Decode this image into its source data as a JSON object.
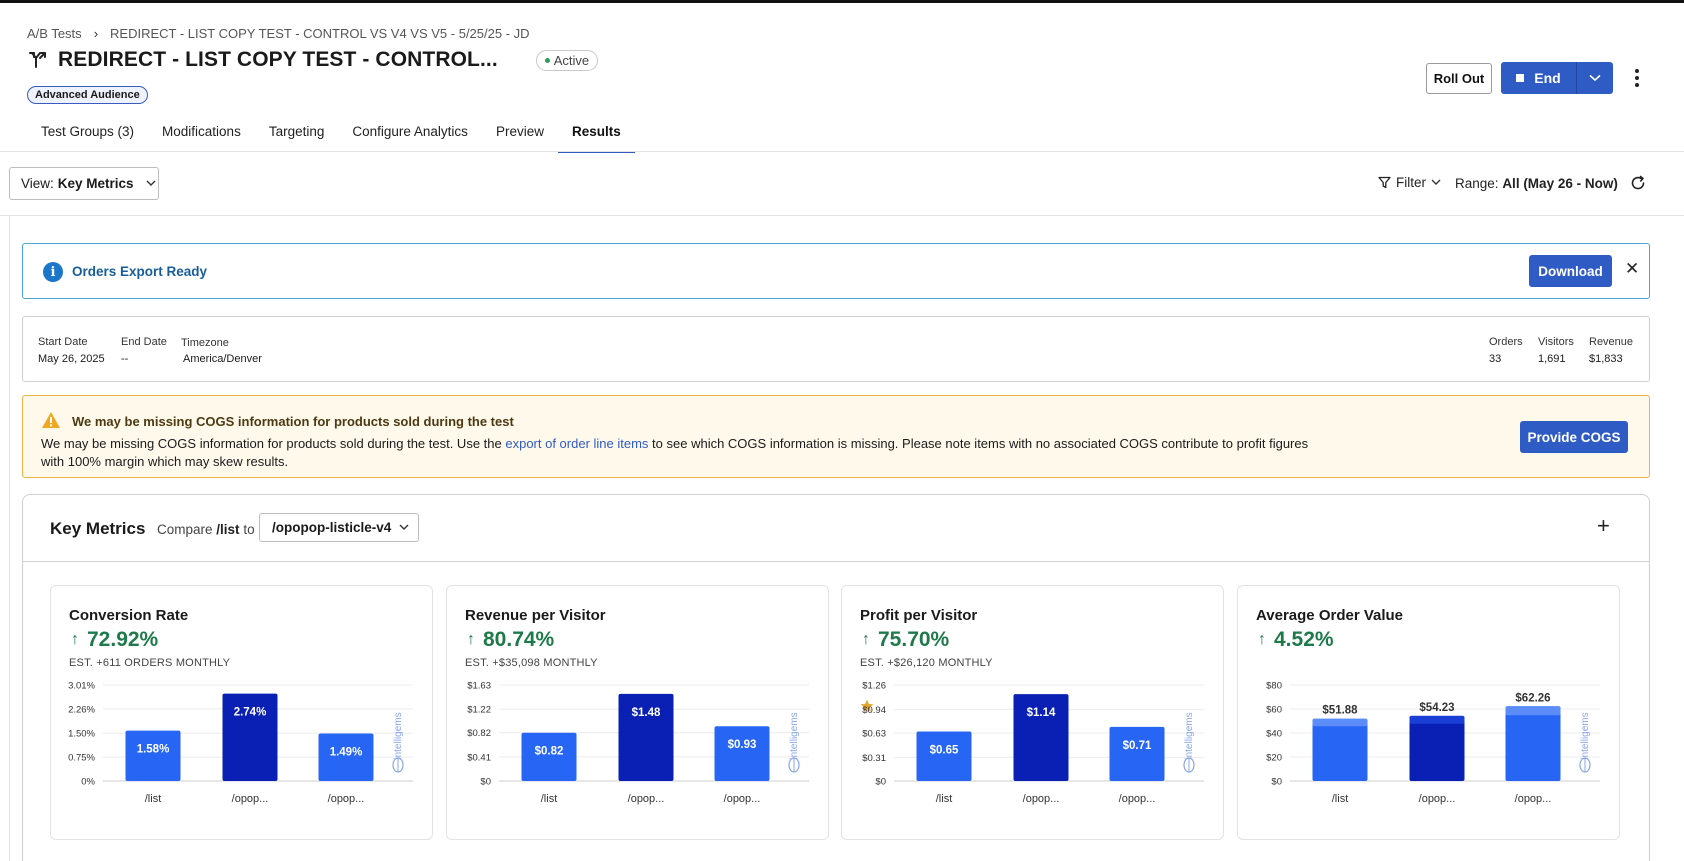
{
  "breadcrumb": {
    "root": "A/B Tests",
    "current": "REDIRECT - LIST COPY TEST - CONTROL VS V4 VS V5 - 5/25/25 - JD"
  },
  "header": {
    "title": "REDIRECT - LIST COPY TEST - CONTROL...",
    "status": "Active",
    "badge": "Advanced Audience",
    "rollout_label": "Roll Out",
    "end_label": "End"
  },
  "tabs": [
    {
      "label": "Test Groups (3)",
      "active": false
    },
    {
      "label": "Modifications",
      "active": false
    },
    {
      "label": "Targeting",
      "active": false
    },
    {
      "label": "Configure Analytics",
      "active": false
    },
    {
      "label": "Preview",
      "active": false
    },
    {
      "label": "Results",
      "active": true
    }
  ],
  "toolbar": {
    "view_prefix": "View:",
    "view_value": "Key Metrics",
    "filter_label": "Filter",
    "range_prefix": "Range:",
    "range_value": "All (May 26 - Now)"
  },
  "export_notice": {
    "text": "Orders Export Ready",
    "download_label": "Download"
  },
  "dates": {
    "start_label": "Start Date",
    "start_value": "May 26, 2025",
    "end_label": "End Date",
    "end_value": "--",
    "tz_label": "Timezone",
    "tz_value": "America/Denver",
    "orders_label": "Orders",
    "orders_value": "33",
    "visitors_label": "Visitors",
    "visitors_value": "1,691",
    "revenue_label": "Revenue",
    "revenue_value": "$1,833"
  },
  "cogs": {
    "title": "We may be missing COGS information for products sold during the test",
    "body_before": "We may be missing COGS information for products sold during the test. Use the ",
    "link": "export of order line items",
    "body_after": " to see which COGS information is missing. Please note items with no associated COGS contribute to profit figures with 100% margin which may skew results.",
    "button": "Provide COGS"
  },
  "key_metrics": {
    "title": "Key Metrics",
    "compare_prefix": "Compare",
    "compare_path": "/list",
    "compare_to": "to",
    "compare_value": "/opopop-listicle-v4"
  },
  "watermark": "intelligems",
  "colors": {
    "primary": "#2f5cc4",
    "bar_light": "#2766f5",
    "bar_dark": "#0a1fb3",
    "positive": "#1e7a4a"
  },
  "metrics": [
    {
      "title": "Conversion Rate",
      "pct": "72.92%",
      "est": "EST. +611 ORDERS MONTHLY",
      "starred": false
    },
    {
      "title": "Revenue per Visitor",
      "pct": "80.74%",
      "est": "EST. +$35,098 MONTHLY",
      "starred": false
    },
    {
      "title": "Profit per Visitor",
      "pct": "75.70%",
      "est": "EST. +$26,120 MONTHLY",
      "starred": true
    },
    {
      "title": "Average Order Value",
      "pct": "4.52%",
      "est": "",
      "starred": false
    }
  ],
  "chart_data": [
    {
      "type": "bar",
      "title": "Conversion Rate",
      "categories": [
        "/list",
        "/opop...",
        "/opop..."
      ],
      "values": [
        1.58,
        2.74,
        1.49
      ],
      "value_labels": [
        "1.58%",
        "2.74%",
        "1.49%"
      ],
      "highlight_index": 1,
      "ylim": [
        0,
        3.01
      ],
      "yticks": [
        0,
        0.75,
        1.5,
        2.26,
        3.01
      ],
      "ytick_labels": [
        "0%",
        "0.75%",
        "1.50%",
        "2.26%",
        "3.01%"
      ],
      "labels_inside": true
    },
    {
      "type": "bar",
      "title": "Revenue per Visitor",
      "categories": [
        "/list",
        "/opop...",
        "/opop..."
      ],
      "values": [
        0.82,
        1.48,
        0.93
      ],
      "value_labels": [
        "$0.82",
        "$1.48",
        "$0.93"
      ],
      "highlight_index": 1,
      "ylim": [
        0,
        1.63
      ],
      "yticks": [
        0,
        0.41,
        0.82,
        1.22,
        1.63
      ],
      "ytick_labels": [
        "$0",
        "$0.41",
        "$0.82",
        "$1.22",
        "$1.63"
      ],
      "labels_inside": true
    },
    {
      "type": "bar",
      "title": "Profit per Visitor",
      "categories": [
        "/list",
        "/opop...",
        "/opop..."
      ],
      "values": [
        0.65,
        1.14,
        0.71
      ],
      "value_labels": [
        "$0.65",
        "$1.14",
        "$0.71"
      ],
      "highlight_index": 1,
      "ylim": [
        0,
        1.26
      ],
      "yticks": [
        0,
        0.31,
        0.63,
        0.94,
        1.26
      ],
      "ytick_labels": [
        "$0",
        "$0.31",
        "$0.63",
        "$0.94",
        "$1.26"
      ],
      "labels_inside": true
    },
    {
      "type": "bar",
      "title": "Average Order Value",
      "categories": [
        "/list",
        "/opop...",
        "/opop..."
      ],
      "values": [
        51.88,
        54.23,
        62.26
      ],
      "value_labels": [
        "$51.88",
        "$54.23",
        "$62.26"
      ],
      "highlight_index": 1,
      "ylim": [
        0,
        80
      ],
      "yticks": [
        0,
        20,
        40,
        60,
        80
      ],
      "ytick_labels": [
        "$0",
        "$20",
        "$40",
        "$60",
        "$80"
      ],
      "labels_inside": false,
      "stacked_top": true
    }
  ]
}
